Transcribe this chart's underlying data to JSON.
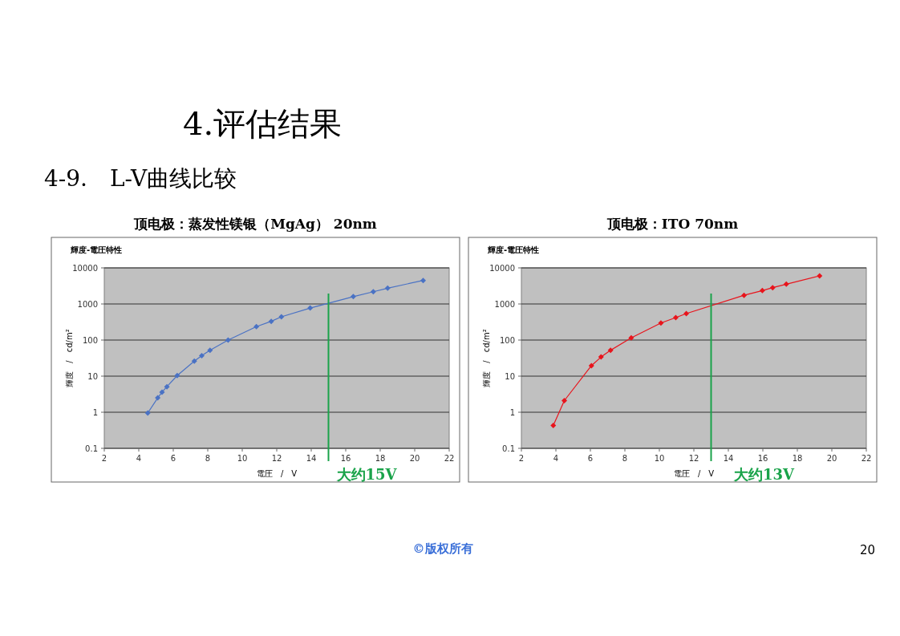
{
  "chart_data": [
    {
      "type": "line",
      "title": "輝度-電圧特性",
      "subtitle": "顶电极：蒸发性镁银（MgAg） 20nm",
      "xlabel": "電圧　/　V",
      "ylabel": "輝度　/　cd/m²",
      "log": "y",
      "grid": "y",
      "marker": "diamond",
      "line_style": "solid",
      "xlim": [
        2,
        22
      ],
      "xticks": [
        2,
        4,
        6,
        8,
        10,
        12,
        14,
        16,
        18,
        20,
        22
      ],
      "ylim": [
        0.1,
        10000
      ],
      "yticks": [
        0.1,
        1,
        10,
        100,
        1000,
        10000
      ],
      "series": [
        {
          "color": "#4a72c4",
          "x": [
            4.52,
            5.1,
            5.35,
            5.63,
            6.23,
            7.22,
            7.65,
            8.13,
            9.18,
            10.82,
            11.68,
            12.27,
            13.94,
            16.44,
            17.6,
            18.43,
            20.49
          ],
          "values": [
            0.95,
            2.5,
            3.6,
            5.1,
            10.4,
            26,
            37,
            52,
            100,
            235,
            330,
            440,
            770,
            1600,
            2180,
            2740,
            4480
          ]
        }
      ],
      "ref_lines": [
        {
          "axis": "x",
          "value": 15,
          "label": "大约15V",
          "color": "#1aa34a"
        }
      ],
      "annotations": [
        "4.评估结果",
        "4-9.　L-V曲线比较"
      ]
    },
    {
      "type": "line",
      "title": "輝度-電圧特性",
      "subtitle": "顶电极：ITO 70nm",
      "xlabel": "電圧　/　V",
      "ylabel": "輝度　/　cd/m²",
      "log": "y",
      "grid": "y",
      "marker": "diamond",
      "line_style": "solid",
      "xlim": [
        2,
        22
      ],
      "xticks": [
        2,
        4,
        6,
        8,
        10,
        12,
        14,
        16,
        18,
        20,
        22
      ],
      "ylim": [
        0.1,
        10000
      ],
      "yticks": [
        0.1,
        1,
        10,
        100,
        1000,
        10000
      ],
      "series": [
        {
          "color": "#e8141c",
          "x": [
            3.85,
            4.49,
            6.06,
            6.62,
            7.17,
            8.37,
            10.09,
            10.95,
            11.56,
            14.91,
            15.97,
            16.57,
            17.36,
            19.29
          ],
          "values": [
            0.43,
            2.1,
            19.5,
            34,
            52,
            115,
            296,
            420,
            540,
            1740,
            2350,
            2830,
            3530,
            6000
          ]
        }
      ],
      "ref_lines": [
        {
          "axis": "x",
          "value": 13,
          "label": "大约13V",
          "color": "#1aa34a"
        }
      ],
      "annotations": [
        "©版权所有",
        "20"
      ]
    }
  ]
}
